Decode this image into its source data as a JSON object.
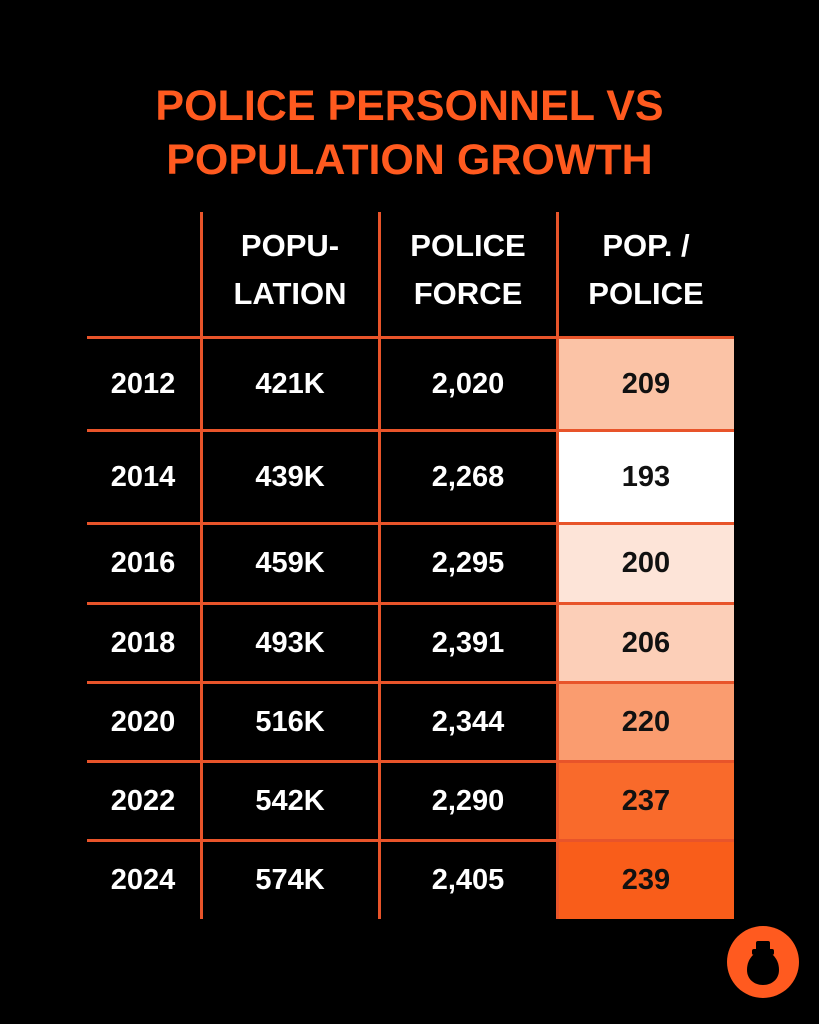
{
  "title_line1": "POLICE PERSONNEL VS",
  "title_line2": "POPULATION GROWTH",
  "headers": {
    "population_l1": "POPU-",
    "population_l2": "LATION",
    "police_l1": "POLICE",
    "police_l2": "FORCE",
    "ratio_l1": "POP. /",
    "ratio_l2": "POLICE"
  },
  "accent_color": "#ff5a1f",
  "rows": [
    {
      "year": "2012",
      "population": "421K",
      "police": "2,020",
      "ratio": "209",
      "shade": "#fbc3a6"
    },
    {
      "year": "2014",
      "population": "439K",
      "police": "2,268",
      "ratio": "193",
      "shade": "#ffffff"
    },
    {
      "year": "2016",
      "population": "459K",
      "police": "2,295",
      "ratio": "200",
      "shade": "#fde4d8"
    },
    {
      "year": "2018",
      "population": "493K",
      "police": "2,391",
      "ratio": "206",
      "shade": "#fccfb8"
    },
    {
      "year": "2020",
      "population": "516K",
      "police": "2,344",
      "ratio": "220",
      "shade": "#fa9c6f"
    },
    {
      "year": "2022",
      "population": "542K",
      "police": "2,290",
      "ratio": "237",
      "shade": "#f96a2b"
    },
    {
      "year": "2024",
      "population": "574K",
      "police": "2,405",
      "ratio": "239",
      "shade": "#f95d1a"
    }
  ],
  "chart_data": {
    "type": "table",
    "title": "POLICE PERSONNEL VS POPULATION GROWTH",
    "columns": [
      "",
      "POPULATION",
      "POLICE FORCE",
      "POP. / POLICE"
    ],
    "categories": [
      "2012",
      "2014",
      "2016",
      "2018",
      "2020",
      "2022",
      "2024"
    ],
    "series": [
      {
        "name": "Population (K)",
        "values": [
          421,
          439,
          459,
          493,
          516,
          542,
          574
        ]
      },
      {
        "name": "Police Force",
        "values": [
          2020,
          2268,
          2295,
          2391,
          2344,
          2290,
          2405
        ]
      },
      {
        "name": "Pop. / Police",
        "values": [
          209,
          193,
          200,
          206,
          220,
          237,
          239
        ]
      }
    ]
  }
}
